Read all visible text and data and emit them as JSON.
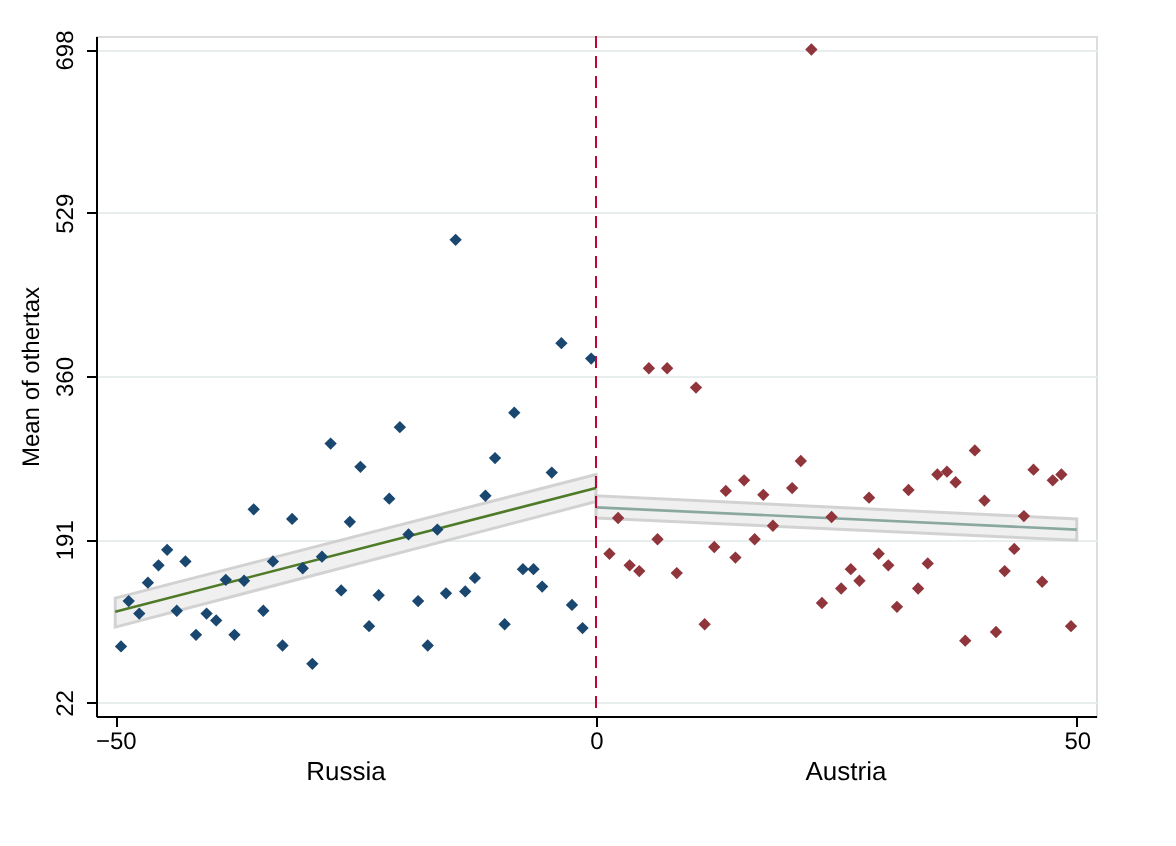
{
  "chart_data": {
    "type": "scatter",
    "ylabel": "Mean of othertax",
    "xlim": [
      -52,
      52
    ],
    "xticks": [
      -50,
      0,
      50
    ],
    "ylim": [
      8,
      712
    ],
    "yticks": [
      22,
      191,
      360,
      529,
      698
    ],
    "grid": "y",
    "marker": "diamond",
    "annotations": [
      "Russia",
      "Austria"
    ],
    "ref_lines": [
      {
        "axis": "x",
        "value": 0,
        "color": "#c10534",
        "line_style": "dashed"
      }
    ],
    "series": [
      {
        "type": "scatter",
        "color": "#1a476f",
        "x": [
          -49.4,
          -48.6,
          -47.5,
          -46.6,
          -45.5,
          -44.6,
          -43.6,
          -42.7,
          -41.6,
          -40.5,
          -39.5,
          -38.5,
          -37.6,
          -36.6,
          -35.6,
          -34.6,
          -33.6,
          -32.6,
          -31.6,
          -30.5,
          -29.5,
          -28.5,
          -27.6,
          -26.5,
          -25.6,
          -24.5,
          -23.6,
          -22.6,
          -21.5,
          -20.4,
          -19.5,
          -18.5,
          -17.5,
          -16.5,
          -15.6,
          -14.6,
          -13.6,
          -12.6,
          -11.5,
          -10.5,
          -9.5,
          -8.5,
          -7.6,
          -6.5,
          -5.6,
          -4.6,
          -3.6,
          -2.5,
          -1.4,
          -0.5
        ],
        "values": [
          80,
          127,
          114,
          146,
          164,
          180,
          117,
          168,
          92,
          114,
          107,
          149,
          92,
          148,
          222,
          117,
          168,
          81,
          212,
          161,
          62,
          173,
          290,
          138,
          209,
          266,
          101,
          133,
          233,
          307,
          196,
          127,
          81,
          201,
          135,
          501,
          137,
          151,
          236,
          275,
          103,
          322,
          160,
          160,
          142,
          260,
          394,
          123,
          99,
          378
        ]
      },
      {
        "type": "scatter",
        "color": "#90353b",
        "x": [
          1.4,
          2.3,
          3.5,
          4.5,
          5.5,
          6.4,
          7.4,
          8.4,
          10.4,
          11.3,
          12.3,
          13.5,
          14.5,
          15.4,
          16.5,
          17.4,
          18.4,
          20.4,
          21.3,
          22.4,
          23.5,
          24.5,
          25.5,
          26.5,
          27.4,
          28.4,
          29.4,
          30.4,
          31.3,
          32.5,
          33.5,
          34.5,
          35.5,
          36.5,
          37.4,
          38.4,
          39.4,
          40.4,
          41.6,
          42.5,
          43.5,
          44.5,
          45.5,
          46.4,
          47.5,
          48.4,
          49.4
        ],
        "values": [
          176,
          213,
          164,
          158,
          368,
          191,
          368,
          156,
          348,
          103,
          183,
          241,
          172,
          252,
          191,
          237,
          205,
          244,
          272,
          698,
          125,
          214,
          140,
          160,
          148,
          234,
          176,
          164,
          121,
          242,
          140,
          166,
          258,
          261,
          250,
          86,
          283,
          231,
          95,
          158,
          181,
          215,
          263,
          147,
          252,
          258,
          101
        ]
      },
      {
        "type": "line",
        "color": "#4f7a28",
        "marker": "none",
        "line_style": "solid",
        "x": [
          -50,
          0
        ],
        "values": [
          116,
          244
        ],
        "lower": [
          100,
          230
        ],
        "upper": [
          130,
          258
        ]
      },
      {
        "type": "line",
        "color": "#8aa8a0",
        "marker": "none",
        "line_style": "solid",
        "x": [
          0,
          50
        ],
        "values": [
          224,
          201
        ],
        "lower": [
          213,
          190
        ],
        "upper": [
          236,
          212
        ]
      }
    ]
  }
}
